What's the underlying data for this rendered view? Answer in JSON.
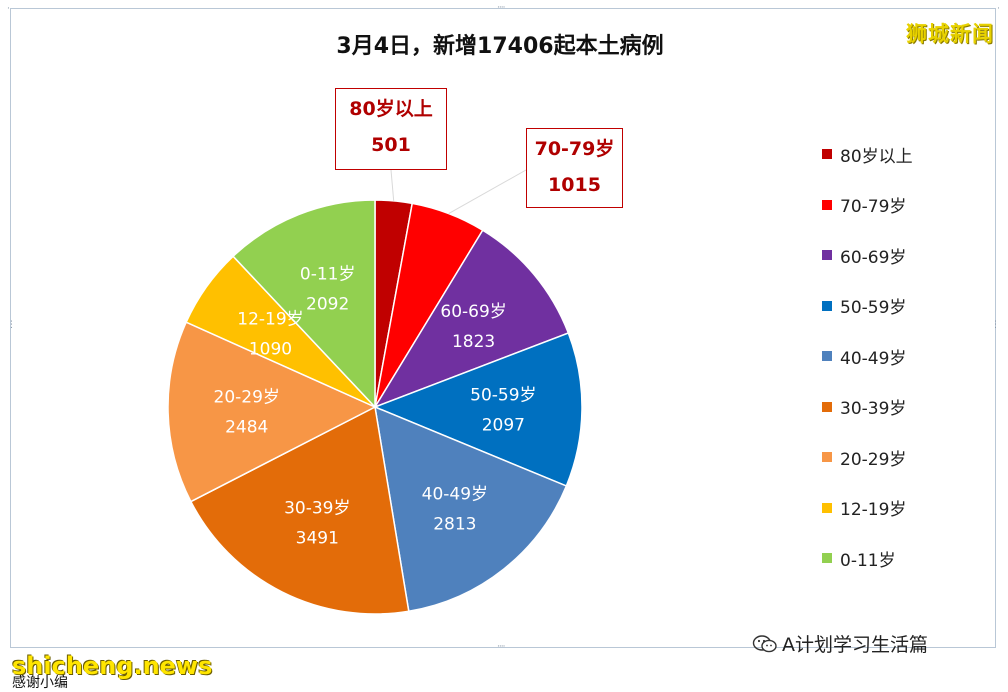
{
  "watermark_brand": "狮城新闻",
  "watermark_wechat": "A计划学习生活篇",
  "watermark_site": "shicheng.news",
  "bottom_text": "感谢小编",
  "chart_data": {
    "type": "pie",
    "title": "3月4日，新增17406起本土病例",
    "total": 17406,
    "start_angle_deg": 0,
    "direction": "clockwise",
    "legend_position": "right",
    "slices": [
      {
        "label": "80岁以上",
        "value": 501,
        "color": "#c00000",
        "label_style": "callout"
      },
      {
        "label": "70-79岁",
        "value": 1015,
        "color": "#ff0000",
        "label_style": "callout"
      },
      {
        "label": "60-69岁",
        "value": 1823,
        "color": "#7030a0",
        "label_style": "inside"
      },
      {
        "label": "50-59岁",
        "value": 2097,
        "color": "#0070c0",
        "label_style": "inside"
      },
      {
        "label": "40-49岁",
        "value": 2813,
        "color": "#4f81bd",
        "label_style": "inside"
      },
      {
        "label": "30-39岁",
        "value": 3491,
        "color": "#e36c09",
        "label_style": "inside"
      },
      {
        "label": "20-29岁",
        "value": 2484,
        "color": "#f79646",
        "label_style": "inside"
      },
      {
        "label": "12-19岁",
        "value": 1090,
        "color": "#ffc000",
        "label_style": "inside"
      },
      {
        "label": "0-11岁",
        "value": 2092,
        "color": "#92d050",
        "label_style": "inside"
      }
    ]
  }
}
